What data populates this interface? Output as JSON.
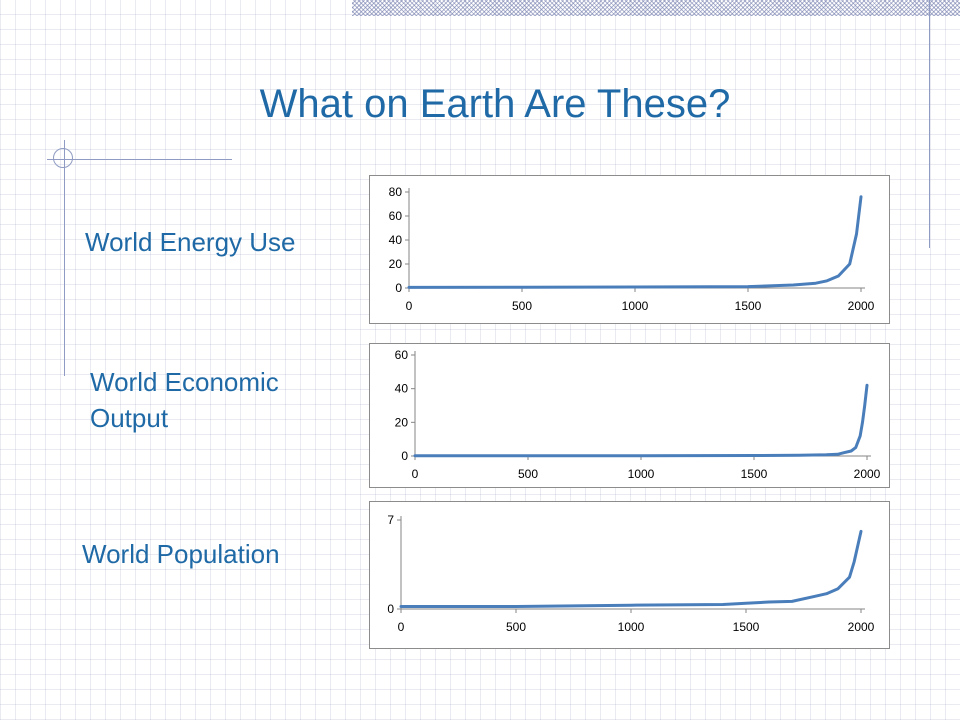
{
  "slide": {
    "title": "What on Earth Are These?",
    "labels": {
      "energy": "World Energy Use",
      "economic_line1": "World Economic",
      "economic_line2": "Output",
      "population": "World Population"
    }
  },
  "colors": {
    "title_text": "#1f6aa6",
    "series_line": "#4a7ebb",
    "decor_lines": "#8f9bc2"
  },
  "chart_data": [
    {
      "type": "line",
      "title": "",
      "xlabel": "",
      "ylabel": "",
      "xlim": [
        0,
        2000
      ],
      "ylim": [
        0,
        80
      ],
      "xticks": [
        0,
        500,
        1000,
        1500,
        2000
      ],
      "yticks": [
        0,
        20,
        40,
        60,
        80
      ],
      "grid": false,
      "legend": "none",
      "series": [
        {
          "x": [
            0,
            500,
            1000,
            1500,
            1700,
            1800,
            1850,
            1900,
            1950,
            1980,
            2000
          ],
          "y": [
            0.5,
            0.6,
            0.8,
            1.2,
            2.5,
            4,
            6,
            10,
            20,
            45,
            76
          ]
        }
      ]
    },
    {
      "type": "line",
      "title": "",
      "xlabel": "",
      "ylabel": "",
      "xlim": [
        0,
        2000
      ],
      "ylim": [
        0,
        60
      ],
      "xticks": [
        0,
        500,
        1000,
        1500,
        2000
      ],
      "yticks": [
        0,
        20,
        40,
        60
      ],
      "grid": false,
      "legend": "none",
      "series": [
        {
          "x": [
            0,
            500,
            1000,
            1500,
            1700,
            1820,
            1870,
            1900,
            1930,
            1950,
            1970,
            1980,
            1990,
            2000
          ],
          "y": [
            0.1,
            0.1,
            0.15,
            0.3,
            0.5,
            0.7,
            1,
            2,
            3,
            5,
            12,
            20,
            30,
            42
          ]
        }
      ]
    },
    {
      "type": "line",
      "title": "",
      "xlabel": "",
      "ylabel": "",
      "xlim": [
        0,
        2000
      ],
      "ylim": [
        0,
        7
      ],
      "xticks": [
        0,
        500,
        1000,
        1500,
        2000
      ],
      "yticks": [
        0,
        7
      ],
      "grid": false,
      "legend": "none",
      "series": [
        {
          "x": [
            0,
            500,
            1000,
            1400,
            1500,
            1600,
            1700,
            1800,
            1850,
            1900,
            1950,
            1970,
            1990,
            2000
          ],
          "y": [
            0.2,
            0.2,
            0.3,
            0.35,
            0.45,
            0.55,
            0.6,
            1.0,
            1.2,
            1.6,
            2.5,
            3.7,
            5.3,
            6.1
          ]
        }
      ]
    }
  ]
}
